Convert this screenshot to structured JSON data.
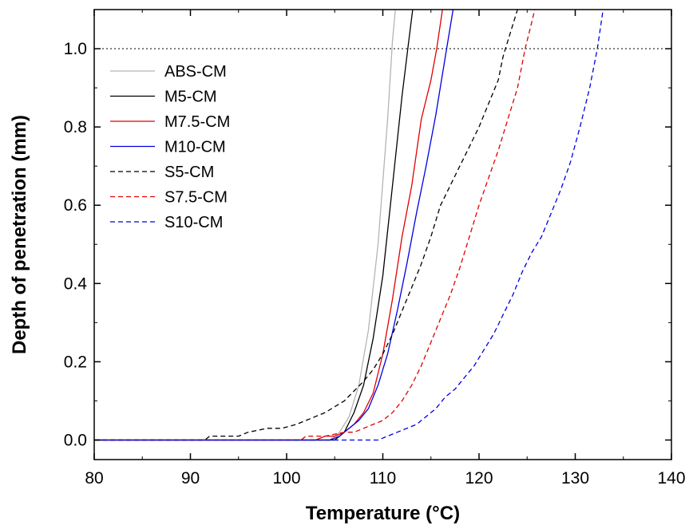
{
  "chart_data": {
    "type": "line",
    "title": "",
    "xlabel": "Temperature (°C)",
    "ylabel": "Depth of penetration (mm)",
    "xlim": [
      80,
      140
    ],
    "ylim": [
      -0.05,
      1.1
    ],
    "xticks": [
      "80",
      "90",
      "100",
      "110",
      "120",
      "130",
      "140"
    ],
    "yticks": [
      "0.0",
      "0.2",
      "0.4",
      "0.6",
      "0.8",
      "1.0"
    ],
    "reference_line": {
      "y": 1.0,
      "style": "dotted"
    },
    "legend_position": "top-left",
    "series": [
      {
        "name": "ABS-CM",
        "color": "#b4b4b4",
        "dash": "solid",
        "points": [
          [
            80,
            0
          ],
          [
            104.5,
            0
          ],
          [
            105.5,
            0.02
          ],
          [
            106.5,
            0.06
          ],
          [
            107.5,
            0.14
          ],
          [
            108.5,
            0.28
          ],
          [
            109.5,
            0.5
          ],
          [
            110.5,
            0.82
          ],
          [
            111.0,
            1.02
          ],
          [
            111.3,
            1.1
          ]
        ]
      },
      {
        "name": "M5-CM",
        "color": "#000000",
        "dash": "solid",
        "points": [
          [
            80,
            0
          ],
          [
            105,
            0
          ],
          [
            106,
            0.02
          ],
          [
            107,
            0.07
          ],
          [
            108,
            0.14
          ],
          [
            109,
            0.26
          ],
          [
            110,
            0.42
          ],
          [
            111,
            0.65
          ],
          [
            112,
            0.88
          ],
          [
            112.7,
            1.02
          ],
          [
            113.1,
            1.1
          ]
        ]
      },
      {
        "name": "M7.5-CM",
        "color": "#e00000",
        "dash": "solid",
        "points": [
          [
            80,
            0
          ],
          [
            103,
            0
          ],
          [
            104,
            0.01
          ],
          [
            105,
            0.01
          ],
          [
            106,
            0.02
          ],
          [
            107,
            0.04
          ],
          [
            108,
            0.07
          ],
          [
            109,
            0.12
          ],
          [
            110,
            0.22
          ],
          [
            111,
            0.36
          ],
          [
            112,
            0.52
          ],
          [
            113,
            0.65
          ],
          [
            114,
            0.82
          ],
          [
            115,
            0.92
          ],
          [
            115.6,
            1.0
          ],
          [
            116.2,
            1.1
          ]
        ]
      },
      {
        "name": "M10-CM",
        "color": "#0000e0",
        "dash": "solid",
        "points": [
          [
            80,
            0
          ],
          [
            104.5,
            0
          ],
          [
            105.5,
            0.01
          ],
          [
            106.5,
            0.03
          ],
          [
            107.5,
            0.05
          ],
          [
            108.5,
            0.08
          ],
          [
            109.5,
            0.14
          ],
          [
            110.5,
            0.22
          ],
          [
            111.5,
            0.33
          ],
          [
            112.5,
            0.45
          ],
          [
            113.5,
            0.58
          ],
          [
            114.5,
            0.7
          ],
          [
            115.5,
            0.83
          ],
          [
            116.5,
            0.98
          ],
          [
            117.3,
            1.1
          ]
        ]
      },
      {
        "name": "S5-CM",
        "color": "#000000",
        "dash": "dashed",
        "points": [
          [
            80,
            0
          ],
          [
            91.5,
            0
          ],
          [
            92,
            0.01
          ],
          [
            95,
            0.01
          ],
          [
            96,
            0.02
          ],
          [
            98,
            0.03
          ],
          [
            99.5,
            0.03
          ],
          [
            101,
            0.04
          ],
          [
            102,
            0.05
          ],
          [
            104,
            0.07
          ],
          [
            106,
            0.1
          ],
          [
            108,
            0.15
          ],
          [
            109,
            0.18
          ],
          [
            110,
            0.22
          ],
          [
            111,
            0.27
          ],
          [
            112,
            0.33
          ],
          [
            113,
            0.39
          ],
          [
            114,
            0.45
          ],
          [
            115,
            0.52
          ],
          [
            116,
            0.6
          ],
          [
            117,
            0.65
          ],
          [
            118,
            0.7
          ],
          [
            119,
            0.75
          ],
          [
            120,
            0.8
          ],
          [
            121,
            0.86
          ],
          [
            122,
            0.92
          ],
          [
            122.5,
            0.98
          ],
          [
            123,
            1.02
          ],
          [
            124,
            1.1
          ]
        ]
      },
      {
        "name": "S7.5-CM",
        "color": "#e00000",
        "dash": "dashed",
        "points": [
          [
            80,
            0
          ],
          [
            101.5,
            0
          ],
          [
            102,
            0.01
          ],
          [
            104,
            0.01
          ],
          [
            106,
            0.02
          ],
          [
            107,
            0.02
          ],
          [
            108,
            0.03
          ],
          [
            109,
            0.04
          ],
          [
            110,
            0.05
          ],
          [
            111,
            0.07
          ],
          [
            112,
            0.1
          ],
          [
            113,
            0.14
          ],
          [
            114,
            0.19
          ],
          [
            115,
            0.25
          ],
          [
            116,
            0.31
          ],
          [
            117,
            0.37
          ],
          [
            118,
            0.44
          ],
          [
            119,
            0.52
          ],
          [
            120,
            0.6
          ],
          [
            121,
            0.67
          ],
          [
            122,
            0.74
          ],
          [
            123,
            0.82
          ],
          [
            124,
            0.9
          ],
          [
            124.8,
            1.0
          ],
          [
            125.8,
            1.1
          ]
        ]
      },
      {
        "name": "S10-CM",
        "color": "#0000e0",
        "dash": "dashed",
        "points": [
          [
            80,
            0
          ],
          [
            109.5,
            0
          ],
          [
            110.5,
            0.01
          ],
          [
            111.5,
            0.02
          ],
          [
            112.5,
            0.03
          ],
          [
            113.5,
            0.04
          ],
          [
            114.5,
            0.06
          ],
          [
            115.5,
            0.08
          ],
          [
            116.5,
            0.11
          ],
          [
            117.5,
            0.13
          ],
          [
            118.5,
            0.16
          ],
          [
            119.5,
            0.19
          ],
          [
            120.5,
            0.23
          ],
          [
            121.5,
            0.27
          ],
          [
            122.5,
            0.32
          ],
          [
            123.5,
            0.37
          ],
          [
            124.5,
            0.43
          ],
          [
            125.5,
            0.48
          ],
          [
            126.5,
            0.52
          ],
          [
            127.5,
            0.58
          ],
          [
            128.5,
            0.64
          ],
          [
            129.5,
            0.71
          ],
          [
            130.5,
            0.8
          ],
          [
            131.5,
            0.9
          ],
          [
            132.3,
            1.0
          ],
          [
            132.9,
            1.1
          ]
        ]
      }
    ]
  }
}
